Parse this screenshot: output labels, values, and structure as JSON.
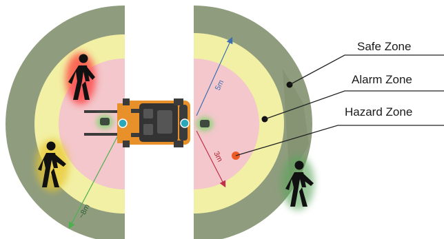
{
  "legend": {
    "safe": "Safe Zone",
    "alarm": "Alarm Zone",
    "hazard": "Hazard Zone"
  },
  "distances": {
    "safe_radius": "~8m",
    "alarm_radius": "5m",
    "hazard_radius": "3m"
  },
  "colors": {
    "safe_zone": "#8f9d7e",
    "alarm_zone": "#f2f0a4",
    "hazard_zone": "#f3c7cb",
    "forklift_body": "#e8902a",
    "forklift_dark": "#3b3b3b",
    "sensor": "#2aa7b8",
    "hazard_marker": "#ee5a24",
    "arrow_green": "#4caf50",
    "arrow_blue": "#3f6fb0",
    "arrow_red": "#c0304a"
  },
  "icons": [
    "person-red",
    "person-yellow",
    "person-green",
    "forklift",
    "sensor",
    "camera"
  ]
}
